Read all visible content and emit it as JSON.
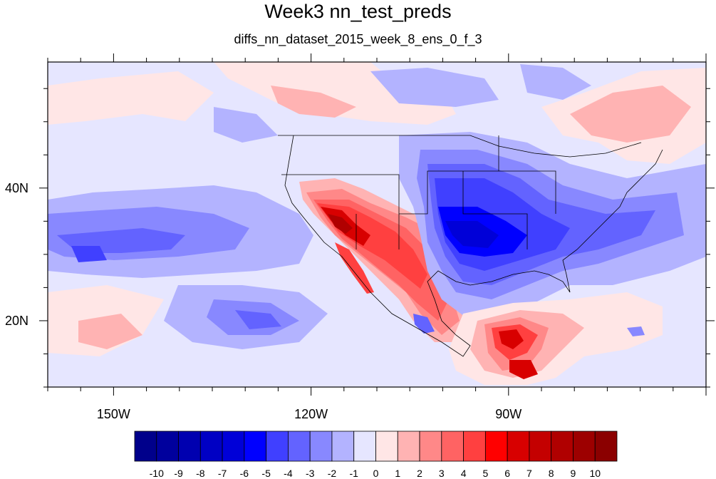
{
  "title": "Week3 nn_test_preds",
  "subtitle": "diffs_nn_dataset_2015_week_8_ens_0_f_3",
  "map": {
    "projection": "cylindrical equidistant",
    "lon_range": [
      -160,
      -60
    ],
    "lat_range": [
      10,
      59
    ],
    "lon_tick_labels": [
      {
        "lon": -150,
        "label": "150W"
      },
      {
        "lon": -120,
        "label": "120W"
      },
      {
        "lon": -90,
        "label": "90W"
      }
    ],
    "lat_tick_labels": [
      {
        "lat": 40,
        "label": "40N"
      },
      {
        "lat": 20,
        "label": "20N"
      }
    ],
    "coastlines": true,
    "state_boundaries": true
  },
  "colorbar": {
    "orientation": "horizontal",
    "labels": [
      "-10",
      "-9",
      "-8",
      "-7",
      "-6",
      "-5",
      "-4",
      "-3",
      "-2",
      "-1",
      "0",
      "1",
      "2",
      "3",
      "4",
      "5",
      "6",
      "7",
      "8",
      "9",
      "10"
    ],
    "colors": [
      "#00008b",
      "#00009d",
      "#0000b0",
      "#0000c4",
      "#0000d8",
      "#0000ff",
      "#4040ff",
      "#6363ff",
      "#8888ff",
      "#b3b3ff",
      "#e6e6ff",
      "#ffe6e6",
      "#ffb3b3",
      "#ff8888",
      "#ff6363",
      "#ff4040",
      "#ff0000",
      "#d80000",
      "#c40000",
      "#b00000",
      "#9d0000",
      "#8b0000"
    ]
  }
}
